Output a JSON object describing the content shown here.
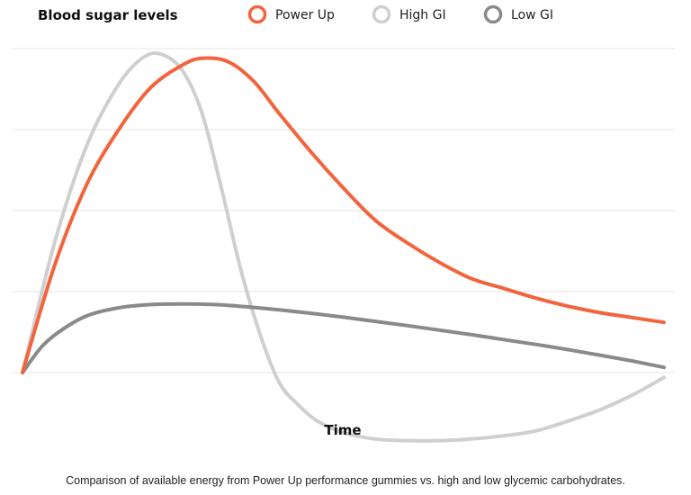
{
  "chart_data": {
    "type": "line",
    "title": "Blood sugar levels",
    "xlabel": "Time",
    "ylabel": "",
    "caption": "Comparison of available energy from Power Up performance gummies vs. high and low glycemic carbohydrates.",
    "grid": true,
    "legend_position": "top",
    "axis_ticks_labeled": false,
    "xlim": [
      0,
      100
    ],
    "ylim": [
      -20,
      100
    ],
    "series": [
      {
        "name": "Power Up",
        "color": "#f2643d",
        "x": [
          0,
          5,
          10,
          15,
          20,
          25,
          28,
          32,
          36,
          40,
          45,
          50,
          55,
          60,
          65,
          70,
          75,
          80,
          85,
          90,
          95,
          100
        ],
        "y": [
          0,
          33,
          58,
          75,
          88,
          95,
          97,
          96,
          90,
          80,
          68,
          57,
          47,
          40,
          34,
          29,
          26,
          23,
          20.5,
          18.5,
          17,
          15.5
        ]
      },
      {
        "name": "High GI",
        "color": "#cfcfcf",
        "x": [
          0,
          5,
          10,
          15,
          19,
          22,
          25,
          28,
          31,
          34,
          37,
          40,
          43,
          46,
          50,
          55,
          60,
          65,
          70,
          75,
          80,
          85,
          90,
          95,
          100
        ],
        "y": [
          0,
          40,
          70,
          89,
          97.5,
          98,
          93,
          80,
          57,
          32,
          12,
          -3,
          -10,
          -15,
          -18.5,
          -20.5,
          -21,
          -21,
          -20.5,
          -19.5,
          -18,
          -15,
          -11.5,
          -7,
          -1.5
        ]
      },
      {
        "name": "Low GI",
        "color": "#8a8a8a",
        "x": [
          0,
          3,
          6,
          10,
          15,
          20,
          25,
          30,
          35,
          40,
          45,
          50,
          55,
          60,
          65,
          70,
          75,
          80,
          85,
          90,
          95,
          100
        ],
        "y": [
          0,
          8,
          13,
          17.5,
          20,
          21,
          21.2,
          21,
          20.3,
          19.4,
          18.3,
          17.1,
          15.8,
          14.5,
          13.1,
          11.7,
          10.2,
          8.7,
          7.1,
          5.4,
          3.6,
          1.6
        ]
      }
    ]
  }
}
